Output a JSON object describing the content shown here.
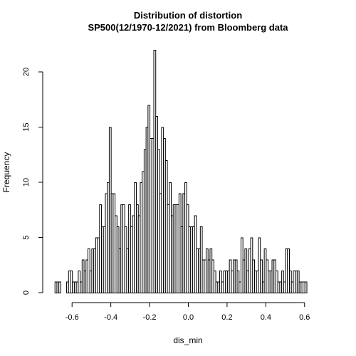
{
  "chart_data": {
    "type": "bar",
    "title": "Distribution of distortion",
    "subtitle": "SP500(12/1970-12/2021) from Bloomberg data",
    "xlabel": "dis_min",
    "ylabel": "Frequency",
    "xlim": [
      -0.7,
      0.7
    ],
    "ylim": [
      0,
      22
    ],
    "x_ticks": [
      "-0.6",
      "-0.4",
      "-0.2",
      "0.0",
      "0.2",
      "0.4",
      "0.6"
    ],
    "x_tick_values": [
      -0.6,
      -0.4,
      -0.2,
      0.0,
      0.2,
      0.4,
      0.6
    ],
    "y_ticks": [
      "0",
      "5",
      "10",
      "15",
      "20"
    ],
    "y_tick_values": [
      0,
      5,
      10,
      15,
      20
    ],
    "bin_width": 0.01,
    "bin_start": -0.69,
    "values": [
      1,
      1,
      1,
      0,
      0,
      0,
      1,
      2,
      2,
      1,
      1,
      1,
      2,
      1,
      3,
      2,
      3,
      4,
      2,
      4,
      4,
      5,
      5,
      8,
      6,
      6,
      9,
      10,
      15,
      9,
      9,
      7,
      6,
      4,
      8,
      8,
      6,
      4,
      8,
      6,
      7,
      10,
      8,
      7,
      10,
      11,
      13,
      15,
      17,
      14,
      14,
      22,
      16,
      13,
      9,
      15,
      14,
      12,
      8,
      10,
      7,
      8,
      8,
      8,
      9,
      6,
      9,
      10,
      8,
      6,
      6,
      6,
      7,
      4,
      4,
      6,
      3,
      3,
      4,
      3,
      4,
      3,
      2,
      1,
      1,
      2,
      1,
      2,
      2,
      2,
      3,
      2,
      3,
      3,
      2,
      1,
      5,
      3,
      4,
      2,
      4,
      5,
      3,
      2,
      2,
      5,
      3,
      1,
      4,
      3,
      2,
      2,
      3,
      3,
      2,
      1,
      1,
      2,
      1,
      4,
      4,
      2,
      1,
      2,
      2,
      2,
      1,
      1,
      1,
      1
    ]
  }
}
